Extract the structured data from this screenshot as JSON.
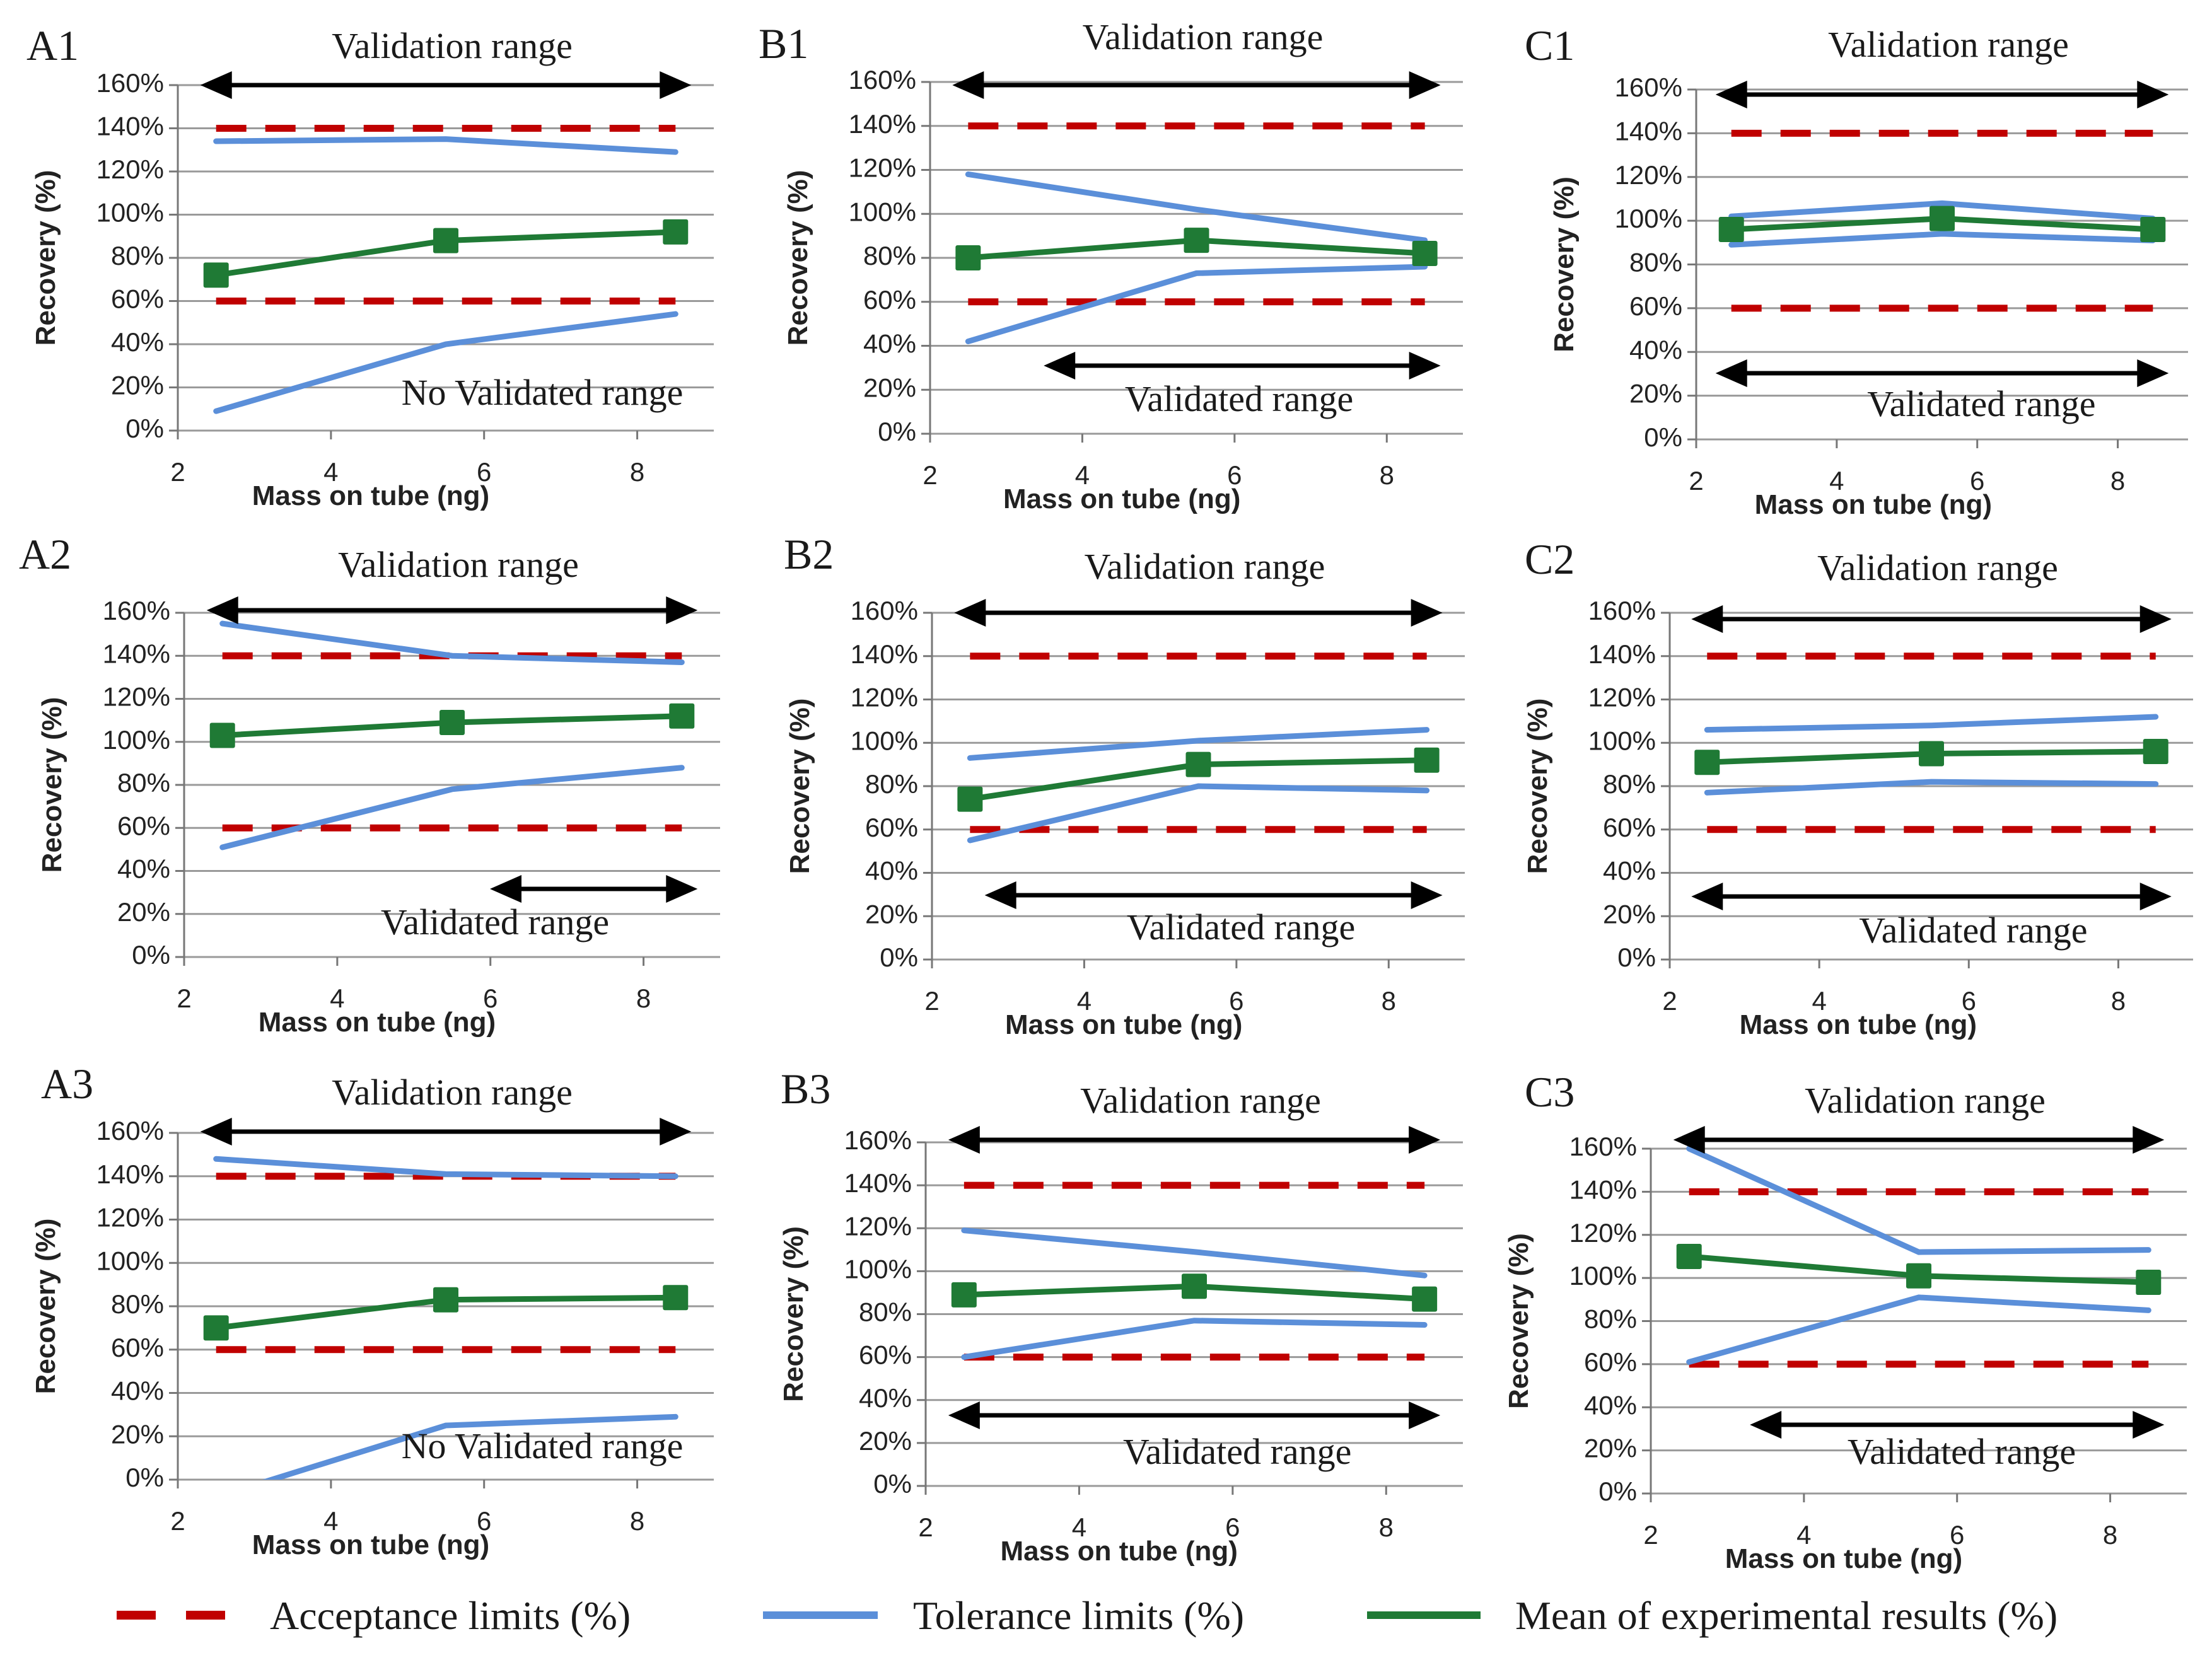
{
  "chart_data": [
    {
      "id": "A1",
      "type": "line",
      "title": "A1",
      "xlabel": "Mass on tube (ng)",
      "ylabel": "Recovery (%)",
      "xlim": [
        2,
        9
      ],
      "ylim": [
        0,
        160
      ],
      "x_ticks": [
        "2",
        "4",
        "6",
        "8"
      ],
      "y_ticks": [
        "0%",
        "20%",
        "40%",
        "60%",
        "80%",
        "100%",
        "120%",
        "140%",
        "160%"
      ],
      "x": [
        2.5,
        5.5,
        8.5
      ],
      "series": [
        {
          "name": "Acceptance limits (%)",
          "values": [
            140,
            140,
            140
          ]
        },
        {
          "name": "Acceptance limits (%)",
          "values": [
            60,
            60,
            60
          ]
        },
        {
          "name": "Tolerance limits (%)",
          "values": [
            134,
            135,
            129
          ]
        },
        {
          "name": "Tolerance limits (%)",
          "values": [
            9,
            40,
            54
          ]
        },
        {
          "name": "Mean of experimental results (%)",
          "values": [
            72,
            88,
            92
          ]
        }
      ],
      "validation_range": {
        "label": "Validation range",
        "from": 2.5,
        "to": 8.5
      },
      "validated_range": {
        "label": "No Validated range"
      }
    },
    {
      "id": "B1",
      "type": "line",
      "title": "B1",
      "xlabel": "Mass on tube (ng)",
      "ylabel": "Recovery (%)",
      "xlim": [
        2,
        9
      ],
      "ylim": [
        0,
        160
      ],
      "x_ticks": [
        "2",
        "4",
        "6",
        "8"
      ],
      "y_ticks": [
        "0%",
        "20%",
        "40%",
        "60%",
        "80%",
        "100%",
        "120%",
        "140%",
        "160%"
      ],
      "x": [
        2.5,
        5.5,
        8.5
      ],
      "series": [
        {
          "name": "Acceptance limits (%)",
          "values": [
            140,
            140,
            140
          ]
        },
        {
          "name": "Acceptance limits (%)",
          "values": [
            60,
            60,
            60
          ]
        },
        {
          "name": "Tolerance limits (%)",
          "values": [
            118,
            102,
            88
          ]
        },
        {
          "name": "Tolerance limits (%)",
          "values": [
            42,
            73,
            76
          ]
        },
        {
          "name": "Mean of experimental results (%)",
          "values": [
            80,
            88,
            82
          ]
        }
      ],
      "validation_range": {
        "label": "Validation range",
        "from": 2.5,
        "to": 8.5
      },
      "validated_range": {
        "label": "Validated range",
        "from": 3.7,
        "to": 8.5
      }
    },
    {
      "id": "C1",
      "type": "line",
      "title": "C1",
      "xlabel": "Mass on tube (ng)",
      "ylabel": "Recovery (%)",
      "xlim": [
        2,
        9
      ],
      "ylim": [
        0,
        160
      ],
      "x_ticks": [
        "2",
        "4",
        "6",
        "8"
      ],
      "y_ticks": [
        "0%",
        "20%",
        "40%",
        "60%",
        "80%",
        "100%",
        "120%",
        "140%",
        "160%"
      ],
      "x": [
        2.5,
        5.5,
        8.5
      ],
      "series": [
        {
          "name": "Acceptance limits (%)",
          "values": [
            140,
            140,
            140
          ]
        },
        {
          "name": "Acceptance limits (%)",
          "values": [
            60,
            60,
            60
          ]
        },
        {
          "name": "Tolerance limits (%)",
          "values": [
            102,
            108,
            101
          ]
        },
        {
          "name": "Tolerance limits (%)",
          "values": [
            89,
            94,
            91
          ]
        },
        {
          "name": "Mean of experimental results (%)",
          "values": [
            96,
            101,
            96
          ]
        }
      ],
      "validation_range": {
        "label": "Validation range",
        "from": 2.5,
        "to": 8.5
      },
      "validated_range": {
        "label": "Validated range",
        "from": 2.5,
        "to": 8.5
      }
    },
    {
      "id": "A2",
      "type": "line",
      "title": "A2",
      "xlabel": "Mass on tube (ng)",
      "ylabel": "Recovery (%)",
      "xlim": [
        2,
        9
      ],
      "ylim": [
        0,
        160
      ],
      "x_ticks": [
        "2",
        "4",
        "6",
        "8"
      ],
      "y_ticks": [
        "0%",
        "20%",
        "40%",
        "60%",
        "80%",
        "100%",
        "120%",
        "140%",
        "160%"
      ],
      "x": [
        2.5,
        5.5,
        8.5
      ],
      "series": [
        {
          "name": "Acceptance limits (%)",
          "values": [
            140,
            140,
            140
          ]
        },
        {
          "name": "Acceptance limits (%)",
          "values": [
            60,
            60,
            60
          ]
        },
        {
          "name": "Tolerance limits (%)",
          "values": [
            155,
            140,
            137
          ]
        },
        {
          "name": "Tolerance limits (%)",
          "values": [
            51,
            78,
            88
          ]
        },
        {
          "name": "Mean of experimental results (%)",
          "values": [
            103,
            109,
            112
          ]
        }
      ],
      "validation_range": {
        "label": "Validation range",
        "from": 2.5,
        "to": 8.5
      },
      "validated_range": {
        "label": "Validated range",
        "from": 6.2,
        "to": 8.5
      }
    },
    {
      "id": "B2",
      "type": "line",
      "title": "B2",
      "xlabel": "Mass on tube (ng)",
      "ylabel": "Recovery (%)",
      "xlim": [
        2,
        9
      ],
      "ylim": [
        0,
        160
      ],
      "x_ticks": [
        "2",
        "4",
        "6",
        "8"
      ],
      "y_ticks": [
        "0%",
        "20%",
        "40%",
        "60%",
        "80%",
        "100%",
        "120%",
        "140%",
        "160%"
      ],
      "x": [
        2.5,
        5.5,
        8.5
      ],
      "series": [
        {
          "name": "Acceptance limits (%)",
          "values": [
            140,
            140,
            140
          ]
        },
        {
          "name": "Acceptance limits (%)",
          "values": [
            60,
            60,
            60
          ]
        },
        {
          "name": "Tolerance limits (%)",
          "values": [
            93,
            101,
            106
          ]
        },
        {
          "name": "Tolerance limits (%)",
          "values": [
            55,
            80,
            78
          ]
        },
        {
          "name": "Mean of experimental results (%)",
          "values": [
            74,
            90,
            92
          ]
        }
      ],
      "validation_range": {
        "label": "Validation range",
        "from": 2.5,
        "to": 8.5
      },
      "validated_range": {
        "label": "Validated range",
        "from": 2.9,
        "to": 8.5
      }
    },
    {
      "id": "C2",
      "type": "line",
      "title": "C2",
      "xlabel": "Mass on tube (ng)",
      "ylabel": "Recovery (%)",
      "xlim": [
        2,
        9
      ],
      "ylim": [
        0,
        160
      ],
      "x_ticks": [
        "2",
        "4",
        "6",
        "8"
      ],
      "y_ticks": [
        "0%",
        "20%",
        "40%",
        "60%",
        "80%",
        "100%",
        "120%",
        "140%",
        "160%"
      ],
      "x": [
        2.5,
        5.5,
        8.5
      ],
      "series": [
        {
          "name": "Acceptance limits (%)",
          "values": [
            140,
            140,
            140
          ]
        },
        {
          "name": "Acceptance limits (%)",
          "values": [
            60,
            60,
            60
          ]
        },
        {
          "name": "Tolerance limits (%)",
          "values": [
            106,
            108,
            112
          ]
        },
        {
          "name": "Tolerance limits (%)",
          "values": [
            77,
            82,
            81
          ]
        },
        {
          "name": "Mean of experimental results (%)",
          "values": [
            91,
            95,
            96
          ]
        }
      ],
      "validation_range": {
        "label": "Validation range",
        "from": 2.5,
        "to": 8.5
      },
      "validated_range": {
        "label": "Validated range",
        "from": 2.5,
        "to": 8.5
      }
    },
    {
      "id": "A3",
      "type": "line",
      "title": "A3",
      "xlabel": "Mass on tube (ng)",
      "ylabel": "Recovery (%)",
      "xlim": [
        2,
        9
      ],
      "ylim": [
        0,
        160
      ],
      "x_ticks": [
        "2",
        "4",
        "6",
        "8"
      ],
      "y_ticks": [
        "0%",
        "20%",
        "40%",
        "60%",
        "80%",
        "100%",
        "120%",
        "140%",
        "160%"
      ],
      "x": [
        2.5,
        5.5,
        8.5
      ],
      "series": [
        {
          "name": "Acceptance limits (%)",
          "values": [
            140,
            140,
            140
          ]
        },
        {
          "name": "Acceptance limits (%)",
          "values": [
            60,
            60,
            60
          ]
        },
        {
          "name": "Tolerance limits (%)",
          "values": [
            148,
            141,
            140
          ]
        },
        {
          "name": "Tolerance limits (%)",
          "values": [
            -8,
            25,
            29
          ]
        },
        {
          "name": "Mean of experimental results (%)",
          "values": [
            70,
            83,
            84
          ]
        }
      ],
      "validation_range": {
        "label": "Validation range",
        "from": 2.5,
        "to": 8.5
      },
      "validated_range": {
        "label": "No Validated range"
      }
    },
    {
      "id": "B3",
      "type": "line",
      "title": "B3",
      "xlabel": "Mass on tube  (ng)",
      "ylabel": "Recovery (%)",
      "xlim": [
        2,
        9
      ],
      "ylim": [
        0,
        160
      ],
      "x_ticks": [
        "2",
        "4",
        "6",
        "8"
      ],
      "y_ticks": [
        "0%",
        "20%",
        "40%",
        "60%",
        "80%",
        "100%",
        "120%",
        "140%",
        "160%"
      ],
      "x": [
        2.5,
        5.5,
        8.5
      ],
      "series": [
        {
          "name": "Acceptance limits (%)",
          "values": [
            140,
            140,
            140
          ]
        },
        {
          "name": "Acceptance limits (%)",
          "values": [
            60,
            60,
            60
          ]
        },
        {
          "name": "Tolerance limits (%)",
          "values": [
            119,
            109,
            98
          ]
        },
        {
          "name": "Tolerance limits (%)",
          "values": [
            60,
            77,
            75
          ]
        },
        {
          "name": "Mean of experimental results (%)",
          "values": [
            89,
            93,
            87
          ]
        }
      ],
      "validation_range": {
        "label": "Validation range",
        "from": 2.5,
        "to": 8.5
      },
      "validated_range": {
        "label": "Validated range",
        "from": 2.5,
        "to": 8.5
      }
    },
    {
      "id": "C3",
      "type": "line",
      "title": "C3",
      "xlabel": "Mass on tube  (ng)",
      "ylabel": "Recovery (%)",
      "xlim": [
        2,
        9
      ],
      "ylim": [
        0,
        160
      ],
      "x_ticks": [
        "2",
        "4",
        "6",
        "8"
      ],
      "y_ticks": [
        "0%",
        "20%",
        "40%",
        "60%",
        "80%",
        "100%",
        "120%",
        "140%",
        "160%"
      ],
      "x": [
        2.5,
        5.5,
        8.5
      ],
      "series": [
        {
          "name": "Acceptance limits (%)",
          "values": [
            140,
            140,
            140
          ]
        },
        {
          "name": "Acceptance limits (%)",
          "values": [
            60,
            60,
            60
          ]
        },
        {
          "name": "Tolerance limits (%)",
          "values": [
            160,
            112,
            113
          ]
        },
        {
          "name": "Tolerance limits (%)",
          "values": [
            61,
            91,
            85
          ]
        },
        {
          "name": "Mean of experimental results (%)",
          "values": [
            110,
            101,
            98
          ]
        }
      ],
      "validation_range": {
        "label": "Validation range",
        "from": 2.5,
        "to": 8.5
      },
      "validated_range": {
        "label": "Validated range",
        "from": 3.5,
        "to": 8.5
      }
    }
  ],
  "legend": [
    {
      "label": "Acceptance limits (%)",
      "style": "dashed",
      "color": "#c00000"
    },
    {
      "label": "Tolerance limits (%)",
      "style": "solid",
      "color": "#5b8fd9"
    },
    {
      "label": "Mean of experimental results (%)",
      "style": "solid",
      "color": "#1f7a35"
    }
  ]
}
